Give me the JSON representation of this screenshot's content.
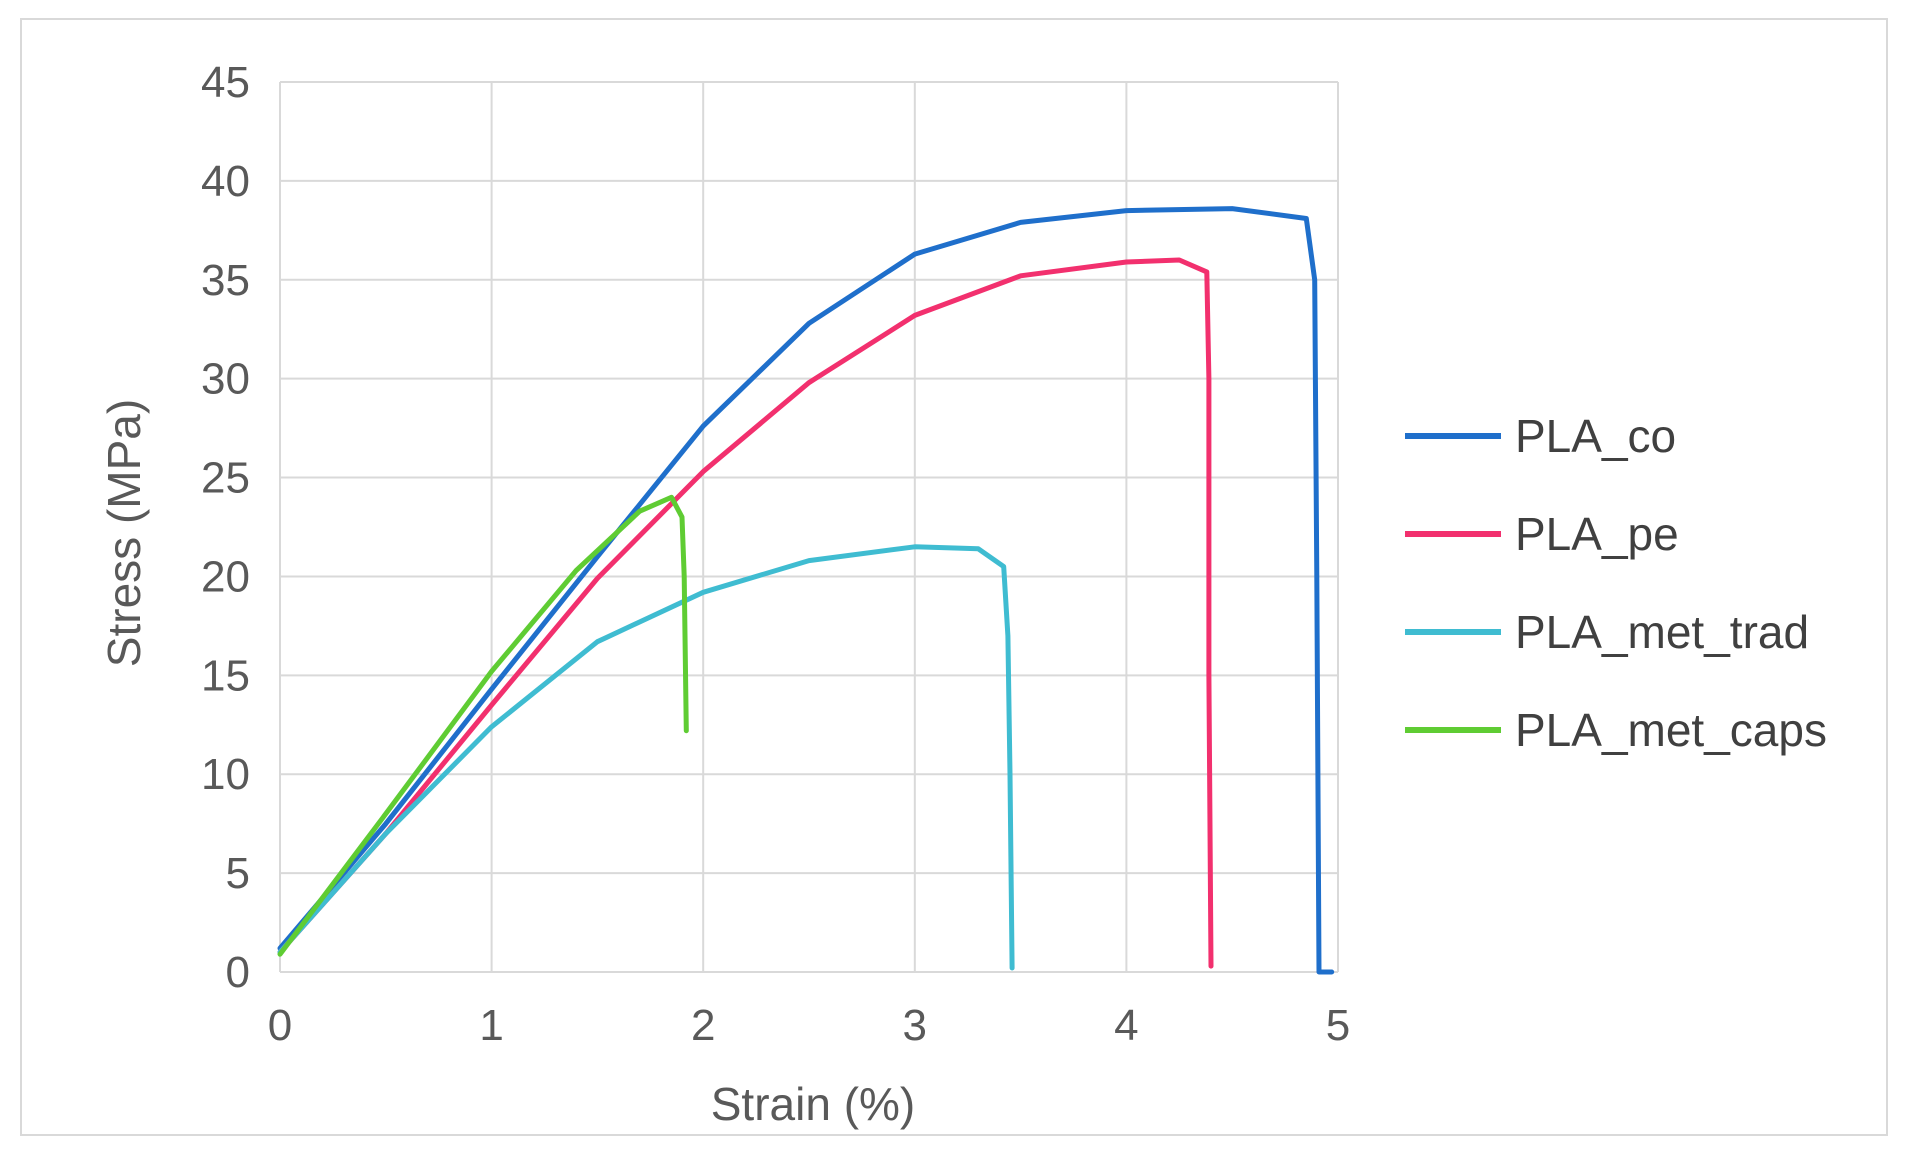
{
  "chart_data": {
    "type": "line",
    "xlabel": "Strain (%)",
    "ylabel": "Stress (MPa)",
    "xlim": [
      0,
      5
    ],
    "ylim": [
      0,
      45
    ],
    "xticks": [
      "0",
      "1",
      "2",
      "3",
      "4",
      "5"
    ],
    "yticks": [
      "0",
      "5",
      "10",
      "15",
      "20",
      "25",
      "30",
      "35",
      "40",
      "45"
    ],
    "grid": true,
    "legend_position": "right",
    "series": [
      {
        "name": "PLA_co",
        "color": "#1f6fcb",
        "points": [
          [
            0,
            1.2
          ],
          [
            0.5,
            7.5
          ],
          [
            1,
            14.3
          ],
          [
            1.5,
            21
          ],
          [
            2,
            27.6
          ],
          [
            2.5,
            32.8
          ],
          [
            3,
            36.3
          ],
          [
            3.5,
            37.9
          ],
          [
            4,
            38.5
          ],
          [
            4.5,
            38.6
          ],
          [
            4.85,
            38.1
          ],
          [
            4.89,
            35
          ],
          [
            4.9,
            20
          ],
          [
            4.91,
            0
          ],
          [
            4.97,
            0
          ]
        ]
      },
      {
        "name": "PLA_pe",
        "color": "#f2306e",
        "points": [
          [
            0,
            1.0
          ],
          [
            0.5,
            7.0
          ],
          [
            1,
            13.5
          ],
          [
            1.5,
            19.9
          ],
          [
            2,
            25.3
          ],
          [
            2.5,
            29.8
          ],
          [
            3,
            33.2
          ],
          [
            3.5,
            35.2
          ],
          [
            4,
            35.9
          ],
          [
            4.25,
            36.0
          ],
          [
            4.38,
            35.4
          ],
          [
            4.39,
            30
          ],
          [
            4.39,
            15
          ],
          [
            4.4,
            0.3
          ]
        ]
      },
      {
        "name": "PLA_met_trad",
        "color": "#3fbcd1",
        "points": [
          [
            0,
            1.0
          ],
          [
            0.5,
            7.0
          ],
          [
            1,
            12.4
          ],
          [
            1.5,
            16.7
          ],
          [
            2,
            19.2
          ],
          [
            2.5,
            20.8
          ],
          [
            3,
            21.5
          ],
          [
            3.3,
            21.4
          ],
          [
            3.42,
            20.5
          ],
          [
            3.44,
            17
          ],
          [
            3.45,
            10
          ],
          [
            3.46,
            0.2
          ]
        ]
      },
      {
        "name": "PLA_met_caps",
        "color": "#5fcc33",
        "points": [
          [
            0,
            0.9
          ],
          [
            0.5,
            8.0
          ],
          [
            1,
            15.2
          ],
          [
            1.4,
            20.3
          ],
          [
            1.7,
            23.3
          ],
          [
            1.85,
            24.0
          ],
          [
            1.9,
            23.0
          ],
          [
            1.91,
            20
          ],
          [
            1.92,
            12.2
          ]
        ]
      }
    ]
  }
}
